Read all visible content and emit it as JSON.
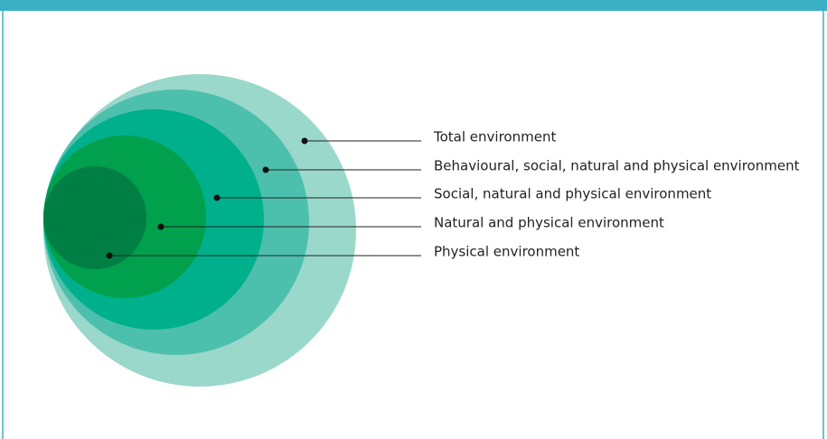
{
  "layers": [
    {
      "label": "Total environment"
    },
    {
      "label": "Behavioural, social, natural and physical environment"
    },
    {
      "label": "Social, natural and physical environment"
    },
    {
      "label": "Natural and physical environment"
    },
    {
      "label": "Physical environment"
    }
  ]
}
